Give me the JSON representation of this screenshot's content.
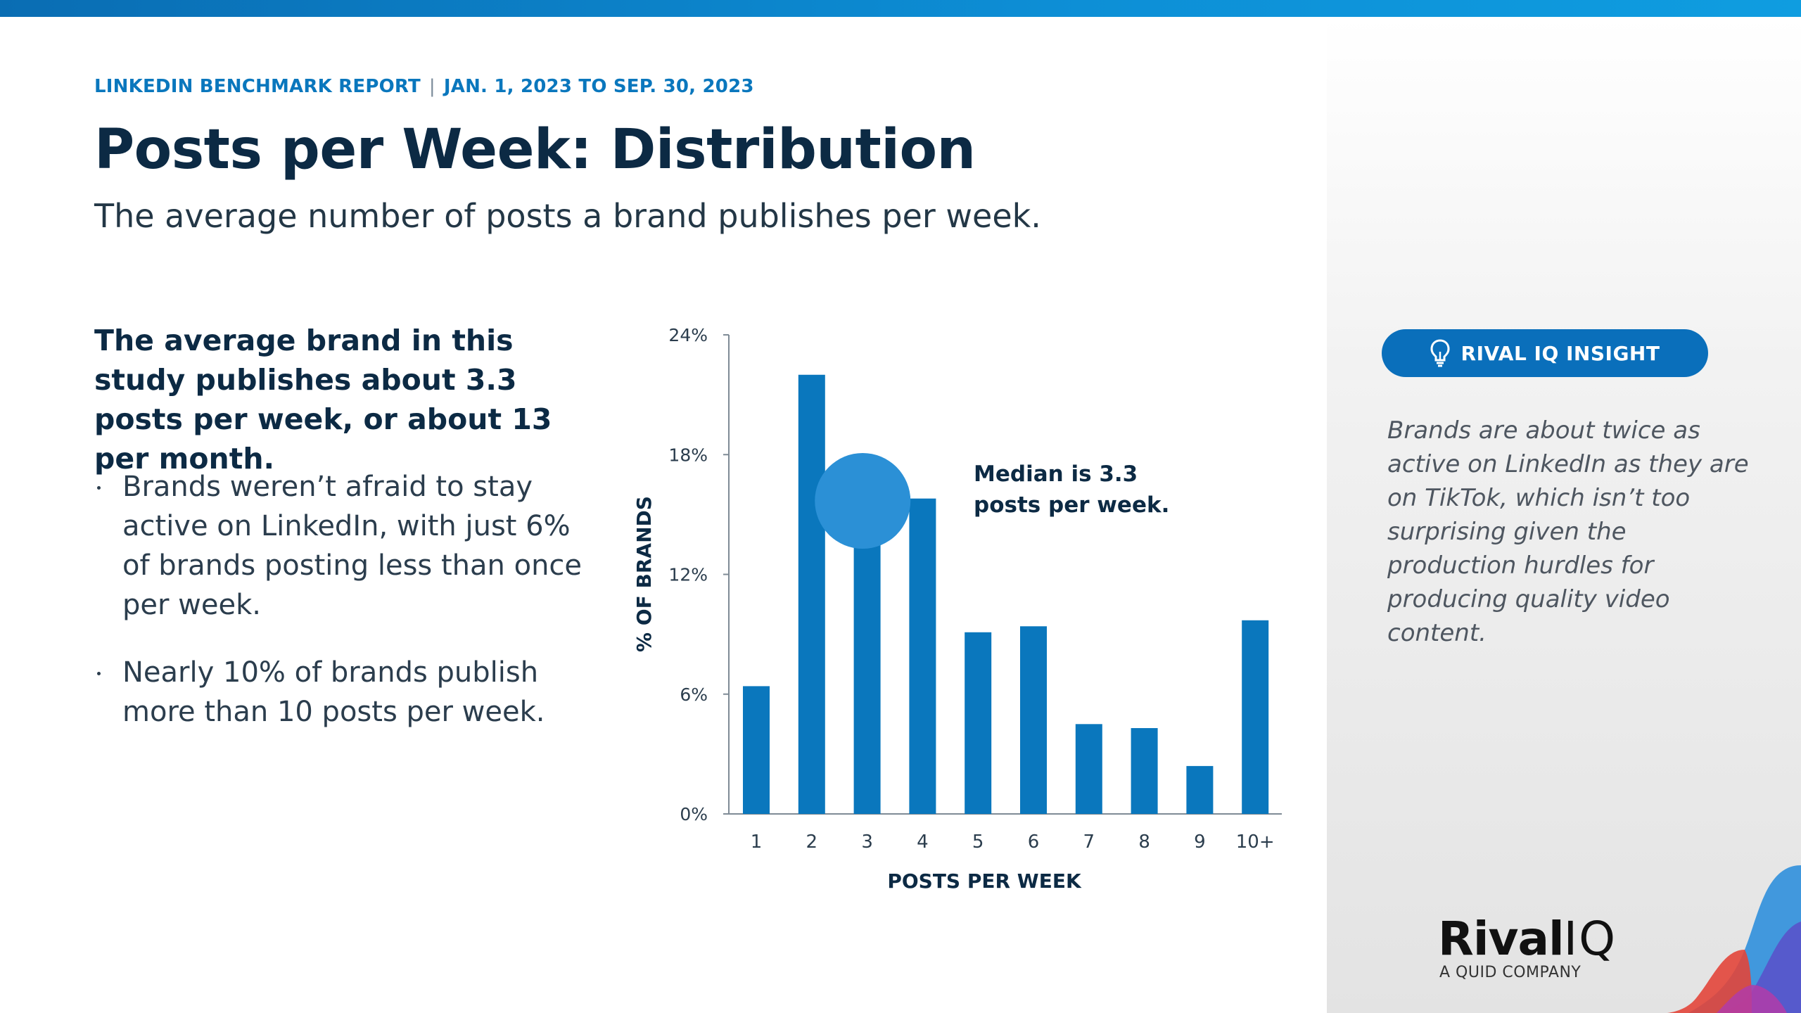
{
  "header": {
    "report_name": "LINKEDIN BENCHMARK REPORT",
    "separator": "|",
    "date_range": "JAN. 1, 2023 TO SEP. 30, 2023",
    "title": "Posts per Week: Distribution",
    "subtitle": "The average number of posts a brand publishes per week."
  },
  "summary": {
    "lead": "The average brand in this study publishes about 3.3 posts per week, or about 13 per month.",
    "bullets": [
      "Brands weren’t afraid to stay active on LinkedIn, with just 6% of brands posting less than once per week.",
      "Nearly 10% of brands publish more than 10 posts per week."
    ]
  },
  "chart_data": {
    "type": "bar",
    "title": "",
    "xlabel": "POSTS PER WEEK",
    "ylabel": "% OF BRANDS",
    "categories": [
      "1",
      "2",
      "3",
      "4",
      "5",
      "6",
      "7",
      "8",
      "9",
      "10+"
    ],
    "values": [
      6.4,
      22.0,
      15.5,
      15.8,
      9.1,
      9.4,
      4.5,
      4.3,
      2.4,
      9.7
    ],
    "ylim": [
      0,
      24
    ],
    "yticks": [
      0,
      6,
      12,
      18,
      24
    ],
    "ytick_labels": [
      "0%",
      "6%",
      "12%",
      "18%",
      "24%"
    ],
    "median_value": 3.3,
    "annotation": [
      "Median is 3.3",
      "posts per week."
    ],
    "bar_color": "#0a77bd",
    "marker_color": "#2b90d6"
  },
  "insight": {
    "label": "RIVAL IQ INSIGHT",
    "icon": "lightbulb-icon",
    "text": "Brands are about twice as active on LinkedIn as they are on TikTok, which isn’t too surprising given the production hurdles for producing quality video content."
  },
  "branding": {
    "name_bold": "Rival",
    "name_light": "IQ",
    "tagline": "A QUID COMPANY"
  },
  "colors": {
    "accent": "#0a77bd",
    "title": "#0c2a44"
  }
}
